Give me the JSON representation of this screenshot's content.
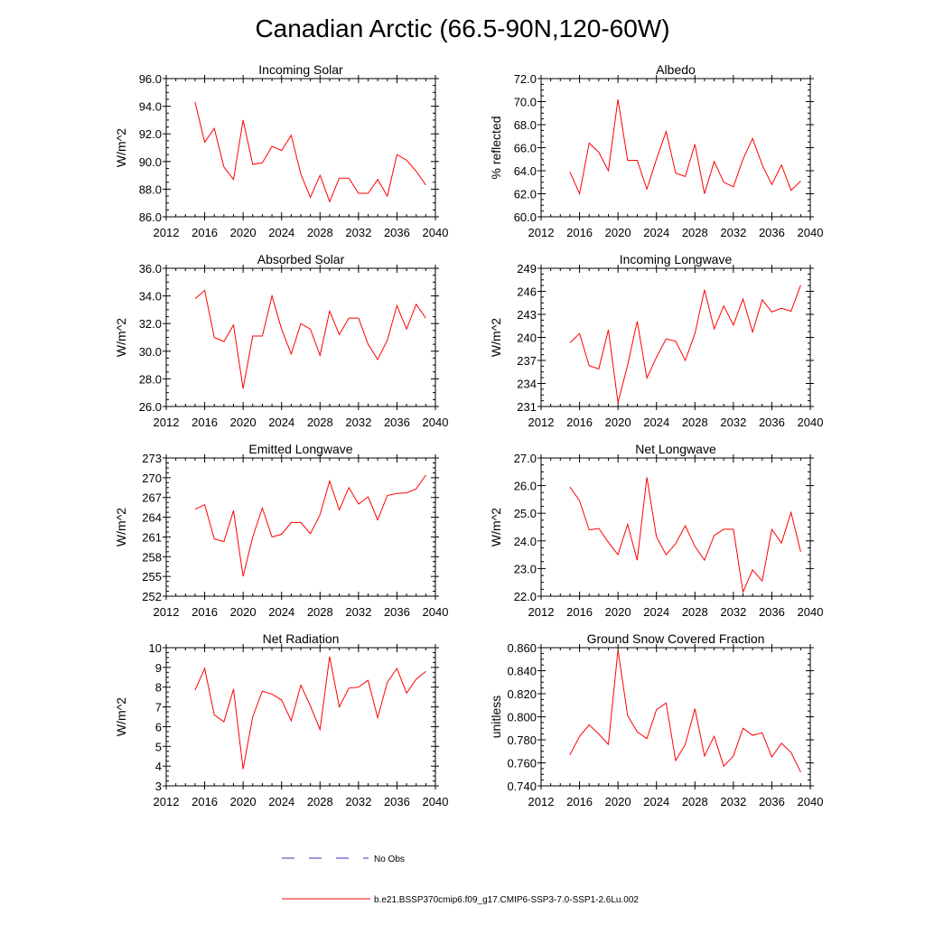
{
  "figure": {
    "title": "Canadian Arctic (66.5-90N,120-60W)",
    "series_color": "#ff0000",
    "obs_color": "#3333cc"
  },
  "legend": {
    "entries": [
      {
        "label": "No Obs",
        "style": "dashed",
        "color": "#3333cc"
      },
      {
        "label": "b.e21.BSSP370cmip6.f09_g17.CMIP6-SSP3-7.0-SSP1-2.6Lu.002",
        "style": "solid",
        "color": "#ff0000"
      }
    ]
  },
  "chart_data": [
    {
      "type": "line",
      "title": "Incoming Solar",
      "ylabel": "W/m^2",
      "xlim": [
        2012,
        2040
      ],
      "xticks": [
        "2012",
        "2016",
        "2020",
        "2024",
        "2028",
        "2032",
        "2036",
        "2040"
      ],
      "ylim": [
        86,
        96
      ],
      "yticks": [
        "86.0",
        "88.0",
        "90.0",
        "92.0",
        "94.0",
        "96.0"
      ],
      "x": [
        2015,
        2016,
        2017,
        2018,
        2019,
        2020,
        2021,
        2022,
        2023,
        2024,
        2025,
        2026,
        2027,
        2028,
        2029,
        2030,
        2031,
        2032,
        2033,
        2034,
        2035,
        2036,
        2037,
        2038,
        2039
      ],
      "series": [
        {
          "values": [
            94.3,
            91.4,
            92.4,
            89.6,
            88.7,
            93.0,
            89.8,
            89.9,
            91.1,
            90.8,
            91.9,
            89.1,
            87.4,
            89.0,
            87.1,
            88.8,
            88.8,
            87.7,
            87.7,
            88.7,
            87.5,
            90.5,
            90.1,
            89.3,
            88.3
          ]
        }
      ]
    },
    {
      "type": "line",
      "title": "Albedo",
      "ylabel": "% reflected",
      "xlim": [
        2012,
        2040
      ],
      "xticks": [
        "2012",
        "2016",
        "2020",
        "2024",
        "2028",
        "2032",
        "2036",
        "2040"
      ],
      "ylim": [
        60,
        72
      ],
      "yticks": [
        "60.0",
        "62.0",
        "64.0",
        "66.0",
        "68.0",
        "70.0",
        "72.0"
      ],
      "x": [
        2015,
        2016,
        2017,
        2018,
        2019,
        2020,
        2021,
        2022,
        2023,
        2024,
        2025,
        2026,
        2027,
        2028,
        2029,
        2030,
        2031,
        2032,
        2033,
        2034,
        2035,
        2036,
        2037,
        2038,
        2039
      ],
      "series": [
        {
          "values": [
            63.9,
            62.0,
            66.4,
            65.6,
            64.0,
            70.2,
            64.9,
            64.9,
            62.4,
            65.0,
            67.4,
            63.8,
            63.5,
            66.3,
            62.0,
            64.8,
            63.0,
            62.6,
            65.0,
            66.8,
            64.5,
            62.8,
            64.5,
            62.3,
            63.1
          ]
        }
      ]
    },
    {
      "type": "line",
      "title": "Absorbed Solar",
      "ylabel": "W/m^2",
      "xlim": [
        2012,
        2040
      ],
      "xticks": [
        "2012",
        "2016",
        "2020",
        "2024",
        "2028",
        "2032",
        "2036",
        "2040"
      ],
      "ylim": [
        26,
        36
      ],
      "yticks": [
        "26.0",
        "28.0",
        "30.0",
        "32.0",
        "34.0",
        "36.0"
      ],
      "x": [
        2015,
        2016,
        2017,
        2018,
        2019,
        2020,
        2021,
        2022,
        2023,
        2024,
        2025,
        2026,
        2027,
        2028,
        2029,
        2030,
        2031,
        2032,
        2033,
        2034,
        2035,
        2036,
        2037,
        2038,
        2039
      ],
      "series": [
        {
          "values": [
            33.8,
            34.4,
            31.0,
            30.7,
            31.9,
            27.3,
            31.1,
            31.1,
            34.0,
            31.6,
            29.8,
            32.0,
            31.6,
            29.7,
            32.9,
            31.2,
            32.4,
            32.4,
            30.5,
            29.4,
            30.8,
            33.3,
            31.6,
            33.4,
            32.4
          ]
        }
      ]
    },
    {
      "type": "line",
      "title": "Incoming Longwave",
      "ylabel": "W/m^2",
      "xlim": [
        2012,
        2040
      ],
      "xticks": [
        "2012",
        "2016",
        "2020",
        "2024",
        "2028",
        "2032",
        "2036",
        "2040"
      ],
      "ylim": [
        231,
        249
      ],
      "yticks": [
        "231",
        "234",
        "237",
        "240",
        "243",
        "246",
        "249"
      ],
      "x": [
        2015,
        2016,
        2017,
        2018,
        2019,
        2020,
        2021,
        2022,
        2023,
        2024,
        2025,
        2026,
        2027,
        2028,
        2029,
        2030,
        2031,
        2032,
        2033,
        2034,
        2035,
        2036,
        2037,
        2038,
        2039
      ],
      "series": [
        {
          "values": [
            239.3,
            240.5,
            236.3,
            235.9,
            241.0,
            231.5,
            236.4,
            242.1,
            234.7,
            237.4,
            239.8,
            239.5,
            237.0,
            240.5,
            246.2,
            241.1,
            244.1,
            241.6,
            245.0,
            240.7,
            244.9,
            243.3,
            243.8,
            243.4,
            246.8
          ]
        }
      ]
    },
    {
      "type": "line",
      "title": "Emitted Longwave",
      "ylabel": "W/m^2",
      "xlim": [
        2012,
        2040
      ],
      "xticks": [
        "2012",
        "2016",
        "2020",
        "2024",
        "2028",
        "2032",
        "2036",
        "2040"
      ],
      "ylim": [
        252,
        273
      ],
      "yticks": [
        "252",
        "255",
        "258",
        "261",
        "264",
        "267",
        "270",
        "273"
      ],
      "x": [
        2015,
        2016,
        2017,
        2018,
        2019,
        2020,
        2021,
        2022,
        2023,
        2024,
        2025,
        2026,
        2027,
        2028,
        2029,
        2030,
        2031,
        2032,
        2033,
        2034,
        2035,
        2036,
        2037,
        2038,
        2039
      ],
      "series": [
        {
          "values": [
            265.2,
            265.9,
            260.7,
            260.3,
            265.0,
            255.0,
            261.0,
            265.4,
            261.0,
            261.4,
            263.2,
            263.2,
            261.5,
            264.4,
            269.5,
            265.1,
            268.5,
            266.0,
            267.1,
            263.6,
            267.3,
            267.6,
            267.7,
            268.3,
            270.4
          ]
        }
      ]
    },
    {
      "type": "line",
      "title": "Net Longwave",
      "ylabel": "W/m^2",
      "xlim": [
        2012,
        2040
      ],
      "xticks": [
        "2012",
        "2016",
        "2020",
        "2024",
        "2028",
        "2032",
        "2036",
        "2040"
      ],
      "ylim": [
        22,
        27
      ],
      "yticks": [
        "22.0",
        "23.0",
        "24.0",
        "25.0",
        "26.0",
        "27.0"
      ],
      "x": [
        2015,
        2016,
        2017,
        2018,
        2019,
        2020,
        2021,
        2022,
        2023,
        2024,
        2025,
        2026,
        2027,
        2028,
        2029,
        2030,
        2031,
        2032,
        2033,
        2034,
        2035,
        2036,
        2037,
        2038,
        2039
      ],
      "series": [
        {
          "values": [
            25.95,
            25.45,
            24.4,
            24.45,
            23.95,
            23.5,
            24.6,
            23.3,
            26.3,
            24.15,
            23.5,
            23.9,
            24.55,
            23.8,
            23.3,
            24.2,
            24.42,
            24.42,
            22.15,
            22.95,
            22.55,
            24.42,
            23.92,
            25.03,
            23.6
          ]
        }
      ]
    },
    {
      "type": "line",
      "title": "Net Radiation",
      "ylabel": "W/m^2",
      "xlim": [
        2012,
        2040
      ],
      "xticks": [
        "2012",
        "2016",
        "2020",
        "2024",
        "2028",
        "2032",
        "2036",
        "2040"
      ],
      "ylim": [
        3,
        10
      ],
      "yticks": [
        "3",
        "4",
        "5",
        "6",
        "7",
        "8",
        "9",
        "10"
      ],
      "x": [
        2015,
        2016,
        2017,
        2018,
        2019,
        2020,
        2021,
        2022,
        2023,
        2024,
        2025,
        2026,
        2027,
        2028,
        2029,
        2030,
        2031,
        2032,
        2033,
        2034,
        2035,
        2036,
        2037,
        2038,
        2039
      ],
      "series": [
        {
          "values": [
            7.85,
            8.95,
            6.6,
            6.25,
            7.9,
            3.85,
            6.5,
            7.8,
            7.65,
            7.35,
            6.3,
            8.1,
            7.05,
            5.85,
            9.55,
            7.0,
            7.95,
            8.0,
            8.35,
            6.45,
            8.25,
            8.95,
            7.7,
            8.4,
            8.8
          ]
        }
      ]
    },
    {
      "type": "line",
      "title": "Ground Snow Covered Fraction",
      "ylabel": "unitless",
      "xlim": [
        2012,
        2040
      ],
      "xticks": [
        "2012",
        "2016",
        "2020",
        "2024",
        "2028",
        "2032",
        "2036",
        "2040"
      ],
      "ylim": [
        0.74,
        0.86
      ],
      "yticks": [
        "0.740",
        "0.760",
        "0.780",
        "0.800",
        "0.820",
        "0.840",
        "0.860"
      ],
      "x": [
        2015,
        2016,
        2017,
        2018,
        2019,
        2020,
        2021,
        2022,
        2023,
        2024,
        2025,
        2026,
        2027,
        2028,
        2029,
        2030,
        2031,
        2032,
        2033,
        2034,
        2035,
        2036,
        2037,
        2038,
        2039
      ],
      "series": [
        {
          "values": [
            0.767,
            0.783,
            0.793,
            0.785,
            0.776,
            0.858,
            0.801,
            0.787,
            0.781,
            0.806,
            0.812,
            0.762,
            0.776,
            0.807,
            0.766,
            0.783,
            0.757,
            0.766,
            0.79,
            0.784,
            0.786,
            0.765,
            0.777,
            0.769,
            0.752
          ]
        }
      ]
    }
  ]
}
